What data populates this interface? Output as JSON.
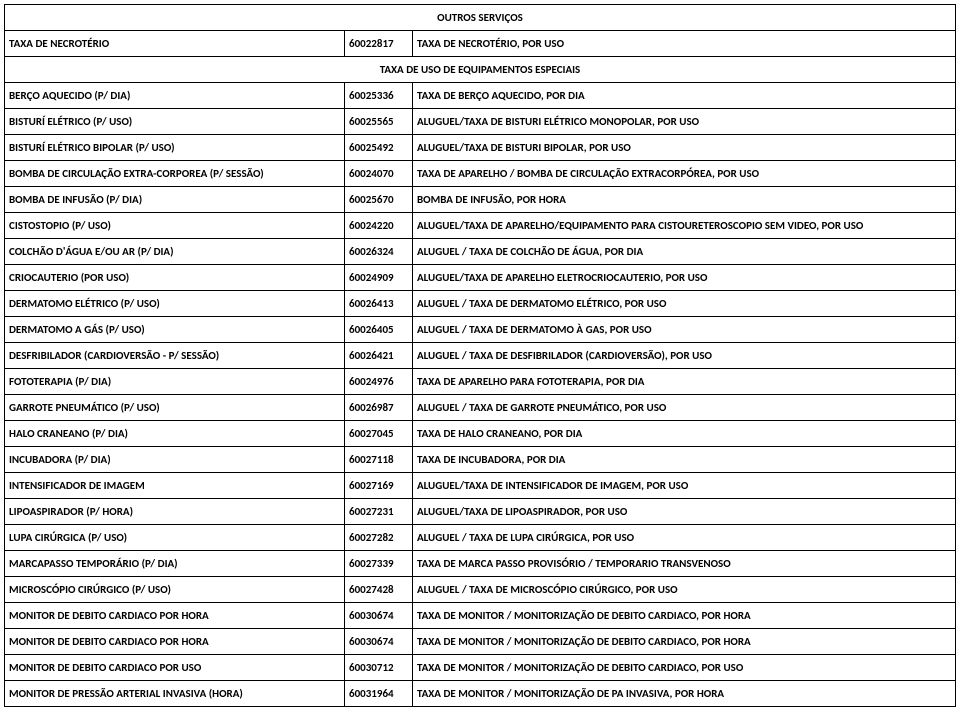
{
  "section1_title": "OUTROS SERVIÇOS",
  "section2_title": "TAXA DE USO DE EQUIPAMENTOS ESPECIAIS",
  "row0": {
    "name": "TAXA DE NECROTÉRIO",
    "code": "60022817",
    "desc": "TAXA DE NECROTÉRIO, POR USO"
  },
  "rows": [
    {
      "name": "BERÇO AQUECIDO (P/ DIA)",
      "code": "60025336",
      "desc": "TAXA DE BERÇO AQUECIDO, POR DIA"
    },
    {
      "name": "BISTURÍ ELÉTRICO (P/ USO)",
      "code": "60025565",
      "desc": "ALUGUEL/TAXA DE BISTURI ELÉTRICO MONOPOLAR, POR USO"
    },
    {
      "name": "BISTURÍ ELÉTRICO BIPOLAR (P/ USO)",
      "code": "60025492",
      "desc": "ALUGUEL/TAXA DE BISTURI  BIPOLAR, POR USO"
    },
    {
      "name": "BOMBA DE CIRCULAÇÃO EXTRA-CORPOREA (P/ SESSÃO)",
      "code": "60024070",
      "desc": "TAXA DE APARELHO / BOMBA DE CIRCULAÇÃO EXTRACORPÓREA, POR USO"
    },
    {
      "name": "BOMBA DE INFUSÃO (P/ DIA)",
      "code": "60025670",
      "desc": "BOMBA DE INFUSÃO, POR HORA"
    },
    {
      "name": "CISTOSTOPIO (P/ USO)",
      "code": "60024220",
      "desc": "ALUGUEL/TAXA DE APARELHO/EQUIPAMENTO PARA CISTOURETEROSCOPIO SEM VIDEO, POR USO"
    },
    {
      "name": "COLCHÃO D'ÁGUA E/OU AR (P/ DIA)",
      "code": "60026324",
      "desc": "ALUGUEL / TAXA DE COLCHÃO DE ÁGUA, POR DIA"
    },
    {
      "name": "CRIOCAUTERIO (POR USO)",
      "code": "60024909",
      "desc": "ALUGUEL/TAXA DE APARELHO ELETROCRIOCAUTERIO, POR USO"
    },
    {
      "name": "DERMATOMO ELÉTRICO (P/ USO)",
      "code": "60026413",
      "desc": "ALUGUEL / TAXA DE DERMATOMO ELÉTRICO, POR USO"
    },
    {
      "name": "DERMATOMO A GÁS (P/ USO)",
      "code": "60026405",
      "desc": "ALUGUEL / TAXA DE DERMATOMO À GAS, POR USO"
    },
    {
      "name": "DESFRIBILADOR (CARDIOVERSÃO - P/ SESSÃO)",
      "code": "60026421",
      "desc": "ALUGUEL / TAXA DE DESFIBRILADOR (CARDIOVERSÃO), POR USO"
    },
    {
      "name": "FOTOTERAPIA (P/ DIA)",
      "code": "60024976",
      "desc": "TAXA DE APARELHO PARA FOTOTERAPIA, POR DIA"
    },
    {
      "name": "GARROTE PNEUMÁTICO (P/ USO)",
      "code": "60026987",
      "desc": "ALUGUEL / TAXA DE GARROTE PNEUMÁTICO, POR USO"
    },
    {
      "name": "HALO CRANEANO (P/ DIA)",
      "code": "60027045",
      "desc": "TAXA DE HALO CRANEANO, POR DIA"
    },
    {
      "name": "INCUBADORA (P/ DIA)",
      "code": "60027118",
      "desc": "TAXA DE INCUBADORA, POR DIA"
    },
    {
      "name": "INTENSIFICADOR DE IMAGEM",
      "code": "60027169",
      "desc": "ALUGUEL/TAXA DE INTENSIFICADOR DE IMAGEM, POR USO"
    },
    {
      "name": "LIPOASPIRADOR (P/ HORA)",
      "code": "60027231",
      "desc": "ALUGUEL/TAXA DE LIPOASPIRADOR, POR USO"
    },
    {
      "name": "LUPA CIRÚRGICA (P/ USO)",
      "code": "60027282",
      "desc": "ALUGUEL / TAXA DE LUPA CIRÚRGICA, POR USO"
    },
    {
      "name": "MARCAPASSO TEMPORÁRIO (P/ DIA)",
      "code": "60027339",
      "desc": "TAXA DE MARCA PASSO PROVISÓRIO / TEMPORARIO TRANSVENOSO"
    },
    {
      "name": "MICROSCÓPIO CIRÚRGICO (P/ USO)",
      "code": "60027428",
      "desc": "ALUGUEL / TAXA DE MICROSCÓPIO CIRÚRGICO, POR USO"
    },
    {
      "name": "MONITOR DE DEBITO CARDIACO POR HORA",
      "code": "60030674",
      "desc": "TAXA DE MONITOR / MONITORIZAÇÃO DE DEBITO CARDIACO, POR HORA"
    },
    {
      "name": "MONITOR DE DEBITO CARDIACO POR HORA",
      "code": "60030674",
      "desc": "TAXA DE MONITOR / MONITORIZAÇÃO DE DEBITO CARDIACO, POR HORA"
    },
    {
      "name": "MONITOR DE DEBITO CARDIACO POR USO",
      "code": "60030712",
      "desc": "TAXA DE MONITOR / MONITORIZAÇÃO DE DEBITO CARDIACO, POR USO"
    },
    {
      "name": "MONITOR DE PRESSÃO ARTERIAL INVASIVA (HORA)",
      "code": "60031964",
      "desc": "TAXA DE MONITOR / MONITORIZAÇÃO DE PA INVASIVA, POR HORA"
    }
  ]
}
